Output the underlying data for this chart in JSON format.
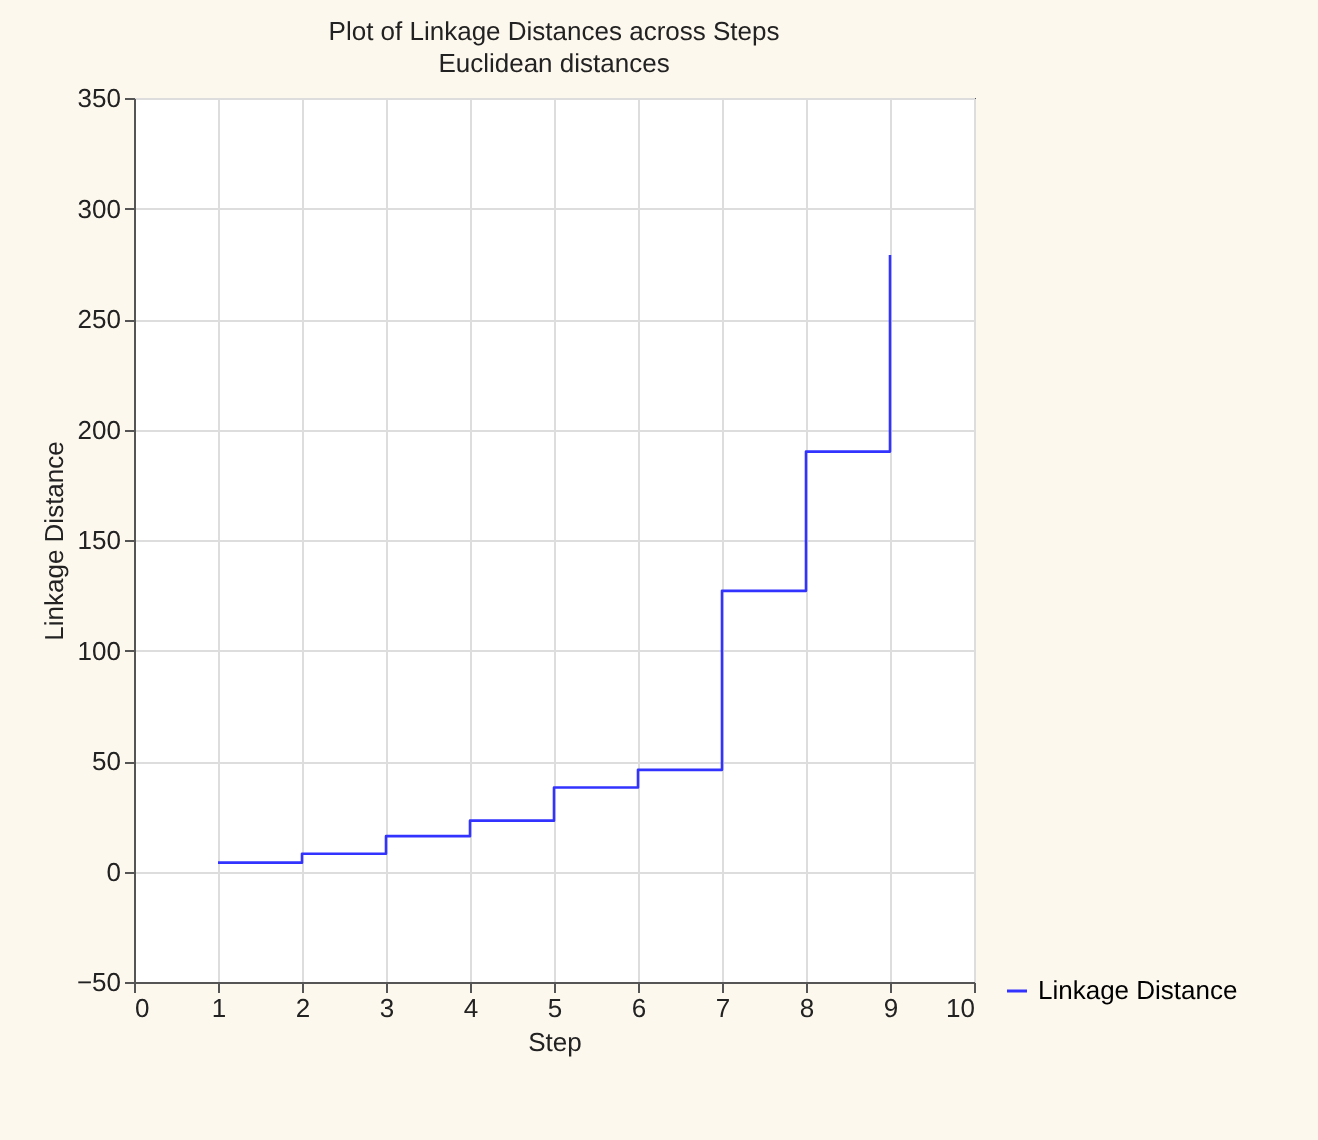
{
  "chart_data": {
    "type": "step",
    "title": "Plot of Linkage Distances across Steps",
    "subtitle": "Euclidean distances",
    "xlabel": "Step",
    "ylabel": "Linkage Distance",
    "x": [
      1,
      2,
      3,
      4,
      5,
      6,
      7,
      8,
      9
    ],
    "series": [
      {
        "name": "Linkage Distance",
        "color": "#3333ff",
        "values": [
          4,
          8,
          16,
          23,
          38,
          46,
          127,
          190,
          279
        ]
      }
    ],
    "xlim": [
      0,
      10
    ],
    "xticks": [
      0,
      1,
      2,
      3,
      4,
      5,
      6,
      7,
      8,
      9,
      10
    ],
    "ylim": [
      -50,
      350
    ],
    "yticks": [
      -50,
      0,
      50,
      100,
      150,
      200,
      250,
      300,
      350
    ],
    "grid": true,
    "legend": "bottom right"
  }
}
